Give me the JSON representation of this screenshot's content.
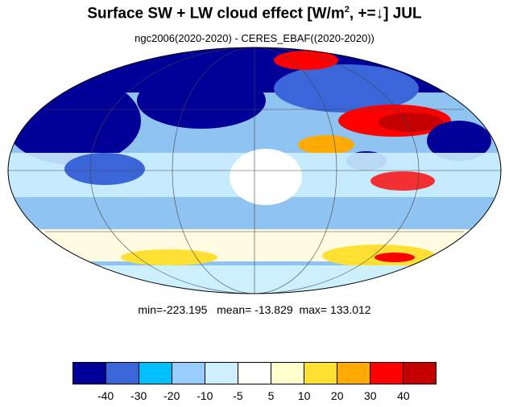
{
  "figure": {
    "title_main": "Surface SW + LW cloud effect [W/m",
    "title_sup": "2",
    "title_tail": ", +=↓]  JUL",
    "subtitle": "ngc2006(2020-2020) - CERES_EBAF((2020-2020))",
    "stats_text": "min=-223.195   mean= -13.829  max= 133.012"
  },
  "colorbar": {
    "colors": [
      "#000099",
      "#3b66d9",
      "#00bfff",
      "#99ccff",
      "#ccf0ff",
      "#ffffff",
      "#ffffcc",
      "#ffe033",
      "#ffaa00",
      "#ff0000",
      "#c40000"
    ],
    "labels": [
      "-40",
      "-30",
      "-20",
      "-10",
      "-5",
      "5",
      "10",
      "20",
      "30",
      "40"
    ]
  },
  "map": {
    "projection": "Mollweide",
    "field": "surface cloud radiative effect difference",
    "grid": true
  }
}
